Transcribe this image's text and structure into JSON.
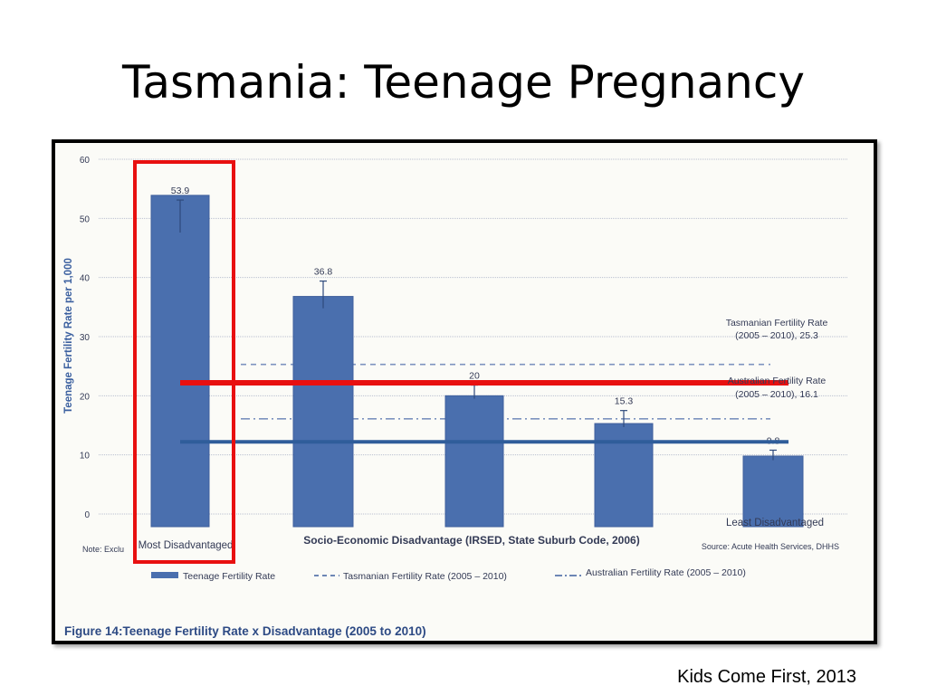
{
  "slide": {
    "title": "Tasmania: Teenage Pregnancy",
    "credit": "Kids Come First, 2013"
  },
  "chart_data": {
    "type": "bar",
    "title": "Figure 14:Teenage Fertility Rate x Disadvantage (2005 to 2010)",
    "xlabel": "Socio-Economic Disadvantage (IRSED, State Suburb Code, 2006)",
    "ylabel": "Teenage Fertility Rate per 1,000",
    "ylim": [
      0,
      60
    ],
    "yticks": [
      0,
      10,
      20,
      30,
      40,
      50,
      60
    ],
    "categories": [
      "Most Disadvantaged",
      "",
      "",
      "",
      "Least Disadvantaged"
    ],
    "series": [
      {
        "name": "Teenage Fertility Rate",
        "values": [
          53.9,
          36.8,
          20,
          15.3,
          9.8
        ],
        "labels": [
          "53.9",
          "36.8",
          "20",
          "15.3",
          "9.8"
        ],
        "color": "#4a6fae"
      }
    ],
    "error_high": [
      53.1,
      39.4,
      21.8,
      17.5,
      10.8
    ],
    "error_low": [
      47.6,
      34.8,
      19.5,
      14.7,
      9.1
    ],
    "reference_lines": [
      {
        "name": "Tasmanian Fertility Rate (2005 – 2010)",
        "value": 25.3,
        "annotation": [
          "Tasmanian Fertility Rate",
          "(2005 – 2010), 25.3"
        ]
      },
      {
        "name": "Australian Fertility Rate (2005 – 2010)",
        "value": 16.1,
        "annotation": [
          "Australian Fertility Rate",
          "(2005 – 2010), 16.1"
        ]
      }
    ],
    "overlay_lines": [
      {
        "color": "#e81010",
        "value": 22.2
      },
      {
        "color": "#2f5d9a",
        "value": 12.2
      }
    ],
    "highlight_color": "#e81010",
    "legend": [
      "Teenage Fertility Rate",
      "Tasmanian Fertility Rate (2005 – 2010)",
      "Australian Fertility Rate (2005 – 2010)"
    ],
    "legend_placement": "bottom",
    "note": "Note: Exclu",
    "source": "Source: Acute Health Services, DHHS",
    "grid": true
  }
}
